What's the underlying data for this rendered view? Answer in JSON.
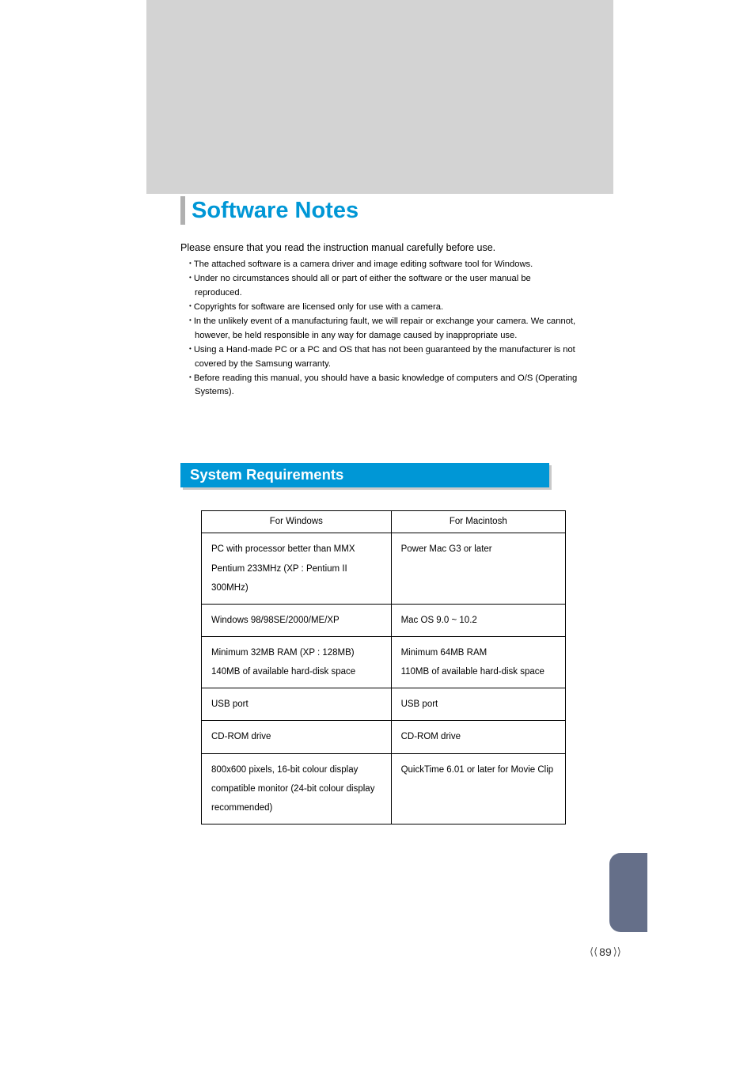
{
  "colors": {
    "accent": "#0097d6",
    "band": "#d3d3d3",
    "side_tab": "#656f89",
    "shadow": "#c9c9c9"
  },
  "title": "Software Notes",
  "intro": "Please ensure that you read the instruction manual carefully before use.",
  "bullets": [
    "The attached software is a camera driver and image editing software tool for Windows.",
    "Under no circumstances should all or part of either the software or the user manual be reproduced.",
    "Copyrights for software are licensed only for use with a camera.",
    "In the unlikely event of a manufacturing fault, we will repair or exchange your camera. We cannot, however, be held responsible in any way for damage caused by inappropriate use.",
    "Using a Hand-made PC or a PC and OS that has not been guaranteed by the manufacturer is not covered by the Samsung warranty.",
    "Before reading this manual, you should have a basic knowledge of computers and O/S (Operating Systems)."
  ],
  "section_heading": "System Requirements",
  "table": {
    "headers": {
      "left": "For Windows",
      "right": "For Macintosh"
    },
    "rows": [
      {
        "left": "PC with processor better than MMX Pentium 233MHz (XP : Pentium II 300MHz)",
        "right": "Power Mac G3 or later"
      },
      {
        "left": "Windows 98/98SE/2000/ME/XP",
        "right": "Mac OS 9.0 ~ 10.2"
      },
      {
        "left": "Minimum 32MB RAM (XP : 128MB) 140MB of available hard-disk space",
        "right": "Minimum 64MB RAM 110MB of available hard-disk space"
      },
      {
        "left": "USB port",
        "right": "USB port"
      },
      {
        "left": "CD-ROM drive",
        "right": "CD-ROM drive"
      },
      {
        "left": "800x600 pixels, 16-bit colour display compatible monitor (24-bit colour display recommended)",
        "right": "QuickTime 6.01 or later for Movie Clip"
      }
    ]
  },
  "page_number": "89"
}
